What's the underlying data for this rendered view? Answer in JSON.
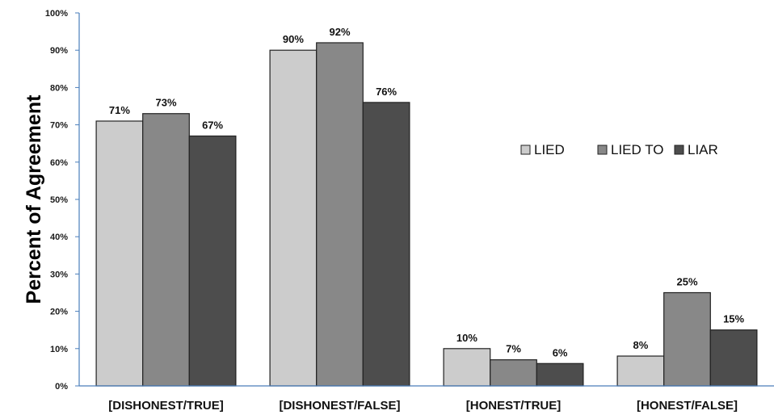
{
  "chart_data": {
    "type": "bar",
    "title": "",
    "xlabel": "",
    "ylabel": "Percent of Agreement",
    "ylim": [
      0,
      100
    ],
    "yticks": [
      "0%",
      "10%",
      "20%",
      "30%",
      "40%",
      "50%",
      "60%",
      "70%",
      "80%",
      "90%",
      "100%"
    ],
    "categories": [
      "[DISHONEST/TRUE]",
      "[DISHONEST/FALSE]",
      "[HONEST/TRUE]",
      "[HONEST/FALSE]"
    ],
    "series": [
      {
        "name": "LIED",
        "values": [
          71,
          90,
          10,
          8
        ],
        "labels": [
          "71%",
          "90%",
          "10%",
          "8%"
        ],
        "color": "#cccccc"
      },
      {
        "name": "LIED TO",
        "values": [
          73,
          92,
          7,
          25
        ],
        "labels": [
          "73%",
          "92%",
          "7%",
          "25%"
        ],
        "color": "#888888"
      },
      {
        "name": "LIAR",
        "values": [
          67,
          76,
          6,
          15
        ],
        "labels": [
          "67%",
          "76%",
          "6%",
          "15%"
        ],
        "color": "#4d4d4d"
      }
    ],
    "legend_position": "right",
    "grid": false,
    "axis_color": "#4a7ebb"
  }
}
